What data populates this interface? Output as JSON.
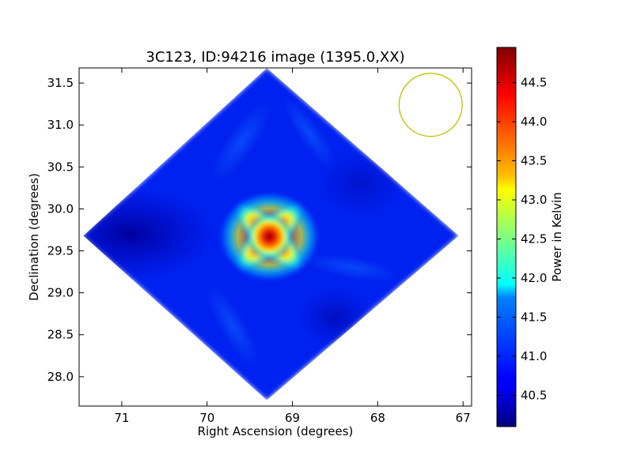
{
  "chart_data": {
    "type": "heatmap",
    "title": "3C123, ID:94216 image (1395.0,XX)",
    "xlabel": "Right Ascension (degrees)",
    "ylabel": "Declination (degrees)",
    "xlim": [
      71.5,
      66.9
    ],
    "ylim": [
      27.65,
      31.68
    ],
    "x_reversed": true,
    "x_ticks": [
      71,
      70,
      69,
      68,
      67
    ],
    "x_tick_labels": [
      "71",
      "70",
      "69",
      "68",
      "67"
    ],
    "y_ticks": [
      28.0,
      28.5,
      29.0,
      29.5,
      30.0,
      30.5,
      31.0,
      31.5
    ],
    "y_tick_labels": [
      "28.0",
      "28.5",
      "29.0",
      "29.5",
      "30.0",
      "30.5",
      "31.0",
      "31.5"
    ],
    "colorbar": {
      "label": "Power in Kelvin",
      "range": [
        40.1,
        44.95
      ],
      "ticks": [
        40.5,
        41.0,
        41.5,
        42.0,
        42.5,
        43.0,
        43.5,
        44.0,
        44.5
      ],
      "tick_labels": [
        "40.5",
        "41.0",
        "41.5",
        "42.0",
        "42.5",
        "43.0",
        "43.5",
        "44.0",
        "44.5"
      ],
      "colormap": "jet"
    },
    "footprint_corners_deg": [
      [
        69.3,
        31.68
      ],
      [
        67.05,
        29.68
      ],
      [
        69.3,
        27.72
      ],
      [
        71.45,
        29.68
      ]
    ],
    "source": {
      "ra": 69.27,
      "dec": 29.67,
      "peak": 44.95
    },
    "background_level": 40.6,
    "beam_circle": {
      "ra": 67.38,
      "dec": 31.24,
      "radius_deg": 0.37,
      "color": "#bfbf00"
    },
    "grid": false,
    "legend": "none"
  }
}
